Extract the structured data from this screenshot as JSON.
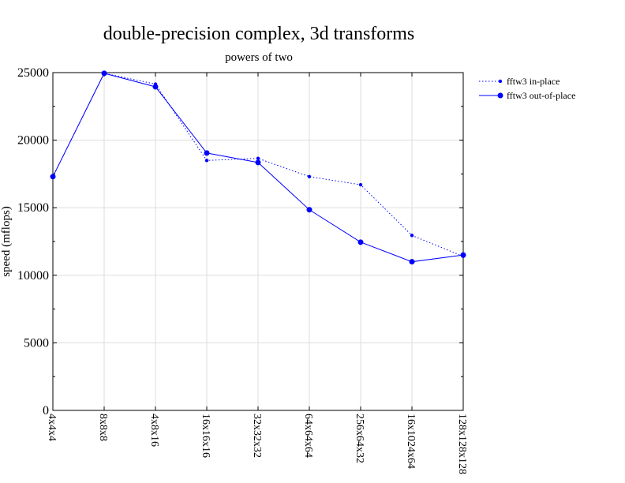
{
  "chart_data": {
    "type": "line",
    "title": "double-precision complex, 3d transforms",
    "subtitle": "powers of two",
    "xlabel": "",
    "ylabel": "speed (mflops)",
    "categories": [
      "4x4x4",
      "8x8x8",
      "4x8x16",
      "16x16x16",
      "32x32x32",
      "64x64x64",
      "256x64x32",
      "16x1024x64",
      "128x128x128"
    ],
    "ylim": [
      0,
      25000
    ],
    "yticks": [
      "0",
      "5000",
      "10000",
      "15000",
      "20000",
      "25000"
    ],
    "ytick_values": [
      0,
      5000,
      10000,
      15000,
      20000,
      25000
    ],
    "grid": true,
    "legend_position": "top-right, outside plot",
    "series": [
      {
        "name": "fftw3 in-place",
        "style": "dotted",
        "marker": "small-dot",
        "color": "#0000ff",
        "values": [
          17300,
          24950,
          24150,
          18500,
          18650,
          17300,
          16700,
          12950,
          11400
        ]
      },
      {
        "name": "fftw3 out-of-place",
        "style": "solid",
        "marker": "dot",
        "color": "#0000ff",
        "values": [
          17300,
          24950,
          23950,
          19050,
          18350,
          14850,
          12450,
          11000,
          11500
        ]
      }
    ]
  }
}
